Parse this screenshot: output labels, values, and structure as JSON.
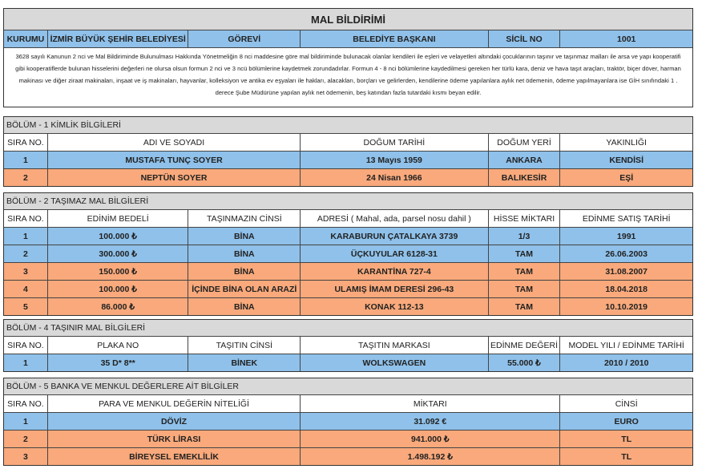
{
  "title": "MAL BİLDİRİMİ",
  "info": [
    "KURUMU",
    "İZMİR BÜYÜK ŞEHİR BELEDİYESİ",
    "GÖREVİ",
    "BELEDİYE BAŞKANI",
    "SİCİL NO",
    "1001"
  ],
  "note": "3628 sayılı Kanunun 2 nci ve Mal Bildiriminde Bulunulması Hakkında Yönetmeliğin 8 nci maddesine göre mal bildiriminde bulunacak olanlar kendileri ile eşleri ve velayetleri altındaki çocuklarının taşınır ve taşınmaz malları ile arsa ve yapı kooperatifi gibi kooperatiflerde bulunan hisselerini değerleri ne olursa olsun formun 2 nci ve 3 ncü bölümlerine kaydetmek zorundadırlar. Formun 4 - 8 nci bölümlerine kaydedilmesi gereken her türlü kara, deniz ve hava taşıt araçları, traktör, biçer döver, harman makinası ve diğer ziraat makinaları, inşaat ve iş makinaları, hayvanlar, kolleksiyon ve antika ev eşyaları ile hakları, alacakları, borçları ve gelirlerden, kendilerine ödeme yapılanlara aylık net ödemenin, ödeme yapılmayanlara ise GİH sınıfındaki 1 . derece Şube Müdürüne yapılan aylık net ödemenin, beş katından fazla tutardaki kısmı beyan edilir.",
  "colors": {
    "header_gray": "#d9d9d9",
    "blue": "#8fc1ea",
    "orange": "#f9a97b"
  },
  "sections": [
    {
      "title": "BÖLÜM - 1 KİMLİK BİLGİLERİ",
      "headers": [
        "SIRA NO.",
        "ADI VE SOYADI",
        "DOĞUM TARİHİ",
        "DOĞUM YERİ",
        "YAKINLIĞI"
      ],
      "rows": [
        {
          "color": "blue",
          "cells": [
            "1",
            "MUSTAFA TUNÇ SOYER",
            "13 Mayıs 1959",
            "ANKARA",
            "KENDİSİ"
          ]
        },
        {
          "color": "orange",
          "cells": [
            "2",
            "NEPTÜN SOYER",
            "24 Nisan 1966",
            "BALIKESİR",
            "EŞİ"
          ]
        }
      ]
    },
    {
      "title": "BÖLÜM - 2 TAŞIMAZ MAL BİLGİLERİ",
      "headers": [
        "SIRA NO.",
        "EDİNİM BEDELİ",
        "TAŞINMAZIN CİNSİ",
        "ADRESİ ( Mahal, ada, parsel nosu dahil )",
        "HİSSE MİKTARI",
        "EDİNME SATIŞ TARİHİ"
      ],
      "rows": [
        {
          "color": "blue",
          "cells": [
            "1",
            "100.000 ₺",
            "BİNA",
            "KARABURUN ÇATALKAYA 3739",
            "1/3",
            "1991"
          ]
        },
        {
          "color": "blue",
          "cells": [
            "2",
            "300.000 ₺",
            "BİNA",
            "ÜÇKUYULAR 6128-31",
            "TAM",
            "26.06.2003"
          ]
        },
        {
          "color": "orange",
          "cells": [
            "3",
            "150.000 ₺",
            "BİNA",
            "KARANTİNA 727-4",
            "TAM",
            "31.08.2007"
          ]
        },
        {
          "color": "orange",
          "cells": [
            "4",
            "100.000 ₺",
            "İÇİNDE BİNA OLAN ARAZİ",
            "ULAMIŞ İMAM DERESİ 296-43",
            "TAM",
            "18.04.2018"
          ]
        },
        {
          "color": "orange",
          "cells": [
            "5",
            "86.000 ₺",
            "BİNA",
            "KONAK 112-13",
            "TAM",
            "10.10.2019"
          ]
        }
      ]
    },
    {
      "title": "BÖLÜM - 4 TAŞINIR MAL BİLGİLERİ",
      "headers": [
        "SIRA NO.",
        "PLAKA NO",
        "TAŞITIN CİNSİ",
        "TAŞITIN MARKASI",
        "EDİNME DEĞERİ",
        "MODEL YILI / EDİNME TARİHİ"
      ],
      "rows": [
        {
          "color": "blue",
          "cells": [
            "1",
            "35 D* 8**",
            "BİNEK",
            "WOLKSWAGEN",
            "55.000 ₺",
            "2010 / 2010"
          ]
        }
      ]
    },
    {
      "title": "BÖLÜM - 5 BANKA VE MENKUL DEĞERLERE AİT BİLGİLER",
      "headers": [
        "SIRA NO.",
        "PARA VE MENKUL DEĞERİN NİTELİĞİ",
        "MİKTARI",
        "CİNSİ"
      ],
      "rows": [
        {
          "color": "blue",
          "cells": [
            "1",
            "DÖVİZ",
            "31.092 €",
            "EURO"
          ]
        },
        {
          "color": "orange",
          "cells": [
            "2",
            "TÜRK LİRASI",
            "941.000 ₺",
            "TL"
          ]
        },
        {
          "color": "orange",
          "cells": [
            "3",
            "BİREYSEL EMEKLİLİK",
            "1.498.192 ₺",
            "TL"
          ]
        }
      ]
    }
  ]
}
